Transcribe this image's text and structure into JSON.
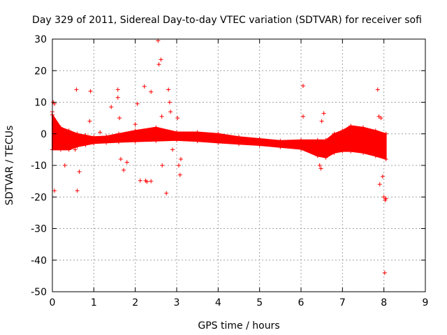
{
  "chart_data": {
    "type": "scatter",
    "title": "Day 329 of 2011, Sidereal Day-to-day VTEC variation (SDTVAR) for receiver sofi",
    "xlabel": "GPS time / hours",
    "ylabel": "SDTVAR / TECUs",
    "xlim": [
      0,
      9
    ],
    "ylim": [
      -50,
      30
    ],
    "xticks": [
      0,
      1,
      2,
      3,
      4,
      5,
      6,
      7,
      8,
      9
    ],
    "yticks": [
      -50,
      -40,
      -30,
      -20,
      -10,
      0,
      10,
      20,
      30
    ],
    "grid": true,
    "marker": "+",
    "color": "#ff0000",
    "band": [
      [
        0.0,
        -5,
        6
      ],
      [
        0.2,
        -5,
        2
      ],
      [
        0.4,
        -5,
        1
      ],
      [
        0.6,
        -4,
        0
      ],
      [
        0.8,
        -3.5,
        -0.5
      ],
      [
        1.0,
        -3,
        -1
      ],
      [
        1.3,
        -2.8,
        -0.8
      ],
      [
        1.6,
        -2.6,
        0
      ],
      [
        2.0,
        -2.4,
        1
      ],
      [
        2.5,
        -2.2,
        2
      ],
      [
        3.0,
        -2,
        0.5
      ],
      [
        3.5,
        -2.3,
        0.5
      ],
      [
        4.0,
        -2.8,
        0
      ],
      [
        4.5,
        -3.2,
        -1
      ],
      [
        5.0,
        -3.6,
        -1.6
      ],
      [
        5.5,
        -4.2,
        -2.2
      ],
      [
        6.0,
        -4.8,
        -2
      ],
      [
        6.4,
        -7,
        -2
      ],
      [
        6.6,
        -7.5,
        -2
      ],
      [
        6.8,
        -6,
        0
      ],
      [
        7.0,
        -5.5,
        1
      ],
      [
        7.2,
        -5.5,
        2.5
      ],
      [
        7.5,
        -6,
        2
      ],
      [
        7.8,
        -7,
        1
      ],
      [
        8.05,
        -8,
        0
      ]
    ],
    "points": [
      [
        0.02,
        10
      ],
      [
        0.05,
        9.5
      ],
      [
        0.0,
        7
      ],
      [
        0.03,
        3
      ],
      [
        0.05,
        -18
      ],
      [
        0.3,
        -10
      ],
      [
        0.58,
        14
      ],
      [
        0.6,
        -18
      ],
      [
        0.65,
        -12
      ],
      [
        0.55,
        -5
      ],
      [
        0.92,
        13.5
      ],
      [
        0.9,
        4
      ],
      [
        1.15,
        0.5
      ],
      [
        1.42,
        8.5
      ],
      [
        1.58,
        14
      ],
      [
        1.58,
        11.5
      ],
      [
        1.62,
        5
      ],
      [
        1.65,
        -8
      ],
      [
        1.72,
        -11.5
      ],
      [
        1.8,
        -9
      ],
      [
        2.05,
        9.5
      ],
      [
        2.0,
        3
      ],
      [
        2.12,
        -14.8
      ],
      [
        2.22,
        15
      ],
      [
        2.25,
        -14.8
      ],
      [
        2.28,
        -15.2
      ],
      [
        2.38,
        -15
      ],
      [
        2.38,
        13.3
      ],
      [
        2.55,
        29.5
      ],
      [
        2.57,
        22
      ],
      [
        2.62,
        23.5
      ],
      [
        2.64,
        5.5
      ],
      [
        2.65,
        -10
      ],
      [
        2.75,
        -18.8
      ],
      [
        2.8,
        14
      ],
      [
        2.83,
        10
      ],
      [
        2.85,
        7
      ],
      [
        2.9,
        -5
      ],
      [
        3.05,
        -10
      ],
      [
        3.08,
        -13
      ],
      [
        3.1,
        -8
      ],
      [
        3.02,
        5
      ],
      [
        6.05,
        15.2
      ],
      [
        6.05,
        5.5
      ],
      [
        6.45,
        -10
      ],
      [
        6.48,
        -11
      ],
      [
        6.55,
        6.5
      ],
      [
        6.5,
        4
      ],
      [
        7.85,
        14
      ],
      [
        7.88,
        5.5
      ],
      [
        7.93,
        5
      ],
      [
        7.9,
        -16
      ],
      [
        7.97,
        -13.5
      ],
      [
        8.0,
        -20
      ],
      [
        8.03,
        -21
      ],
      [
        8.05,
        -20.5
      ],
      [
        8.02,
        -44
      ]
    ]
  }
}
